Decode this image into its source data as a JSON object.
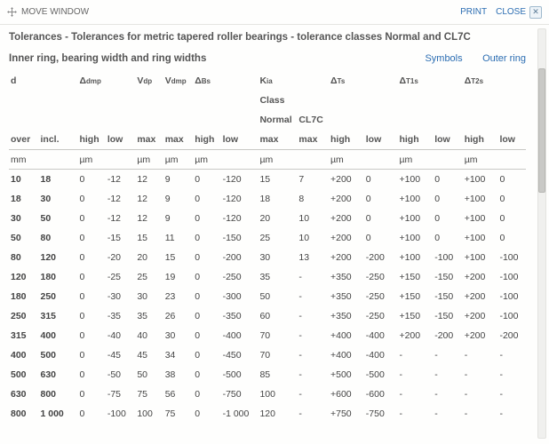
{
  "titlebar": {
    "move": "MOVE WINDOW",
    "print": "PRINT",
    "close": "CLOSE"
  },
  "heading": "Tolerances - Tolerances for metric tapered roller bearings - tolerance classes Normal and CL7C",
  "section": "Inner ring, bearing width and ring widths",
  "links": {
    "symbols": "Symbols",
    "outer": "Outer ring"
  },
  "cols": {
    "d": "d",
    "ddmp": "Δ",
    "ddmp_sub": "dmp",
    "vdp": "V",
    "vdp_sub": "dp",
    "vdmp": "V",
    "vdmp_sub": "dmp",
    "dbs": "Δ",
    "dbs_sub": "Bs",
    "kia": "K",
    "kia_sub": "ia",
    "class": "Class",
    "normal": "Normal",
    "cl7c": "CL7C",
    "dts": "Δ",
    "dts_sub": "Ts",
    "dt1s": "Δ",
    "dt1s_sub": "T1s",
    "dt2s": "Δ",
    "dt2s_sub": "T2s",
    "over": "over",
    "incl": "incl.",
    "high": "high",
    "low": "low",
    "max": "max",
    "mm": "mm",
    "um": "µm"
  },
  "rows": [
    [
      "10",
      "18",
      "0",
      "-12",
      "12",
      "9",
      "0",
      "-120",
      "15",
      "7",
      "+200",
      "0",
      "+100",
      "0",
      "+100",
      "0"
    ],
    [
      "18",
      "30",
      "0",
      "-12",
      "12",
      "9",
      "0",
      "-120",
      "18",
      "8",
      "+200",
      "0",
      "+100",
      "0",
      "+100",
      "0"
    ],
    [
      "30",
      "50",
      "0",
      "-12",
      "12",
      "9",
      "0",
      "-120",
      "20",
      "10",
      "+200",
      "0",
      "+100",
      "0",
      "+100",
      "0"
    ],
    [
      "50",
      "80",
      "0",
      "-15",
      "15",
      "11",
      "0",
      "-150",
      "25",
      "10",
      "+200",
      "0",
      "+100",
      "0",
      "+100",
      "0"
    ],
    [
      "80",
      "120",
      "0",
      "-20",
      "20",
      "15",
      "0",
      "-200",
      "30",
      "13",
      "+200",
      "-200",
      "+100",
      "-100",
      "+100",
      "-100"
    ],
    [
      "120",
      "180",
      "0",
      "-25",
      "25",
      "19",
      "0",
      "-250",
      "35",
      "-",
      "+350",
      "-250",
      "+150",
      "-150",
      "+200",
      "-100"
    ],
    [
      "180",
      "250",
      "0",
      "-30",
      "30",
      "23",
      "0",
      "-300",
      "50",
      "-",
      "+350",
      "-250",
      "+150",
      "-150",
      "+200",
      "-100"
    ],
    [
      "250",
      "315",
      "0",
      "-35",
      "35",
      "26",
      "0",
      "-350",
      "60",
      "-",
      "+350",
      "-250",
      "+150",
      "-150",
      "+200",
      "-100"
    ],
    [
      "315",
      "400",
      "0",
      "-40",
      "40",
      "30",
      "0",
      "-400",
      "70",
      "-",
      "+400",
      "-400",
      "+200",
      "-200",
      "+200",
      "-200"
    ],
    [
      "400",
      "500",
      "0",
      "-45",
      "45",
      "34",
      "0",
      "-450",
      "70",
      "-",
      "+400",
      "-400",
      "-",
      "-",
      "-",
      "-"
    ],
    [
      "500",
      "630",
      "0",
      "-50",
      "50",
      "38",
      "0",
      "-500",
      "85",
      "-",
      "+500",
      "-500",
      "-",
      "-",
      "-",
      "-"
    ],
    [
      "630",
      "800",
      "0",
      "-75",
      "75",
      "56",
      "0",
      "-750",
      "100",
      "-",
      "+600",
      "-600",
      "-",
      "-",
      "-",
      "-"
    ],
    [
      "800",
      "1 000",
      "0",
      "-100",
      "100",
      "75",
      "0",
      "-1 000",
      "120",
      "-",
      "+750",
      "-750",
      "-",
      "-",
      "-",
      "-"
    ]
  ]
}
